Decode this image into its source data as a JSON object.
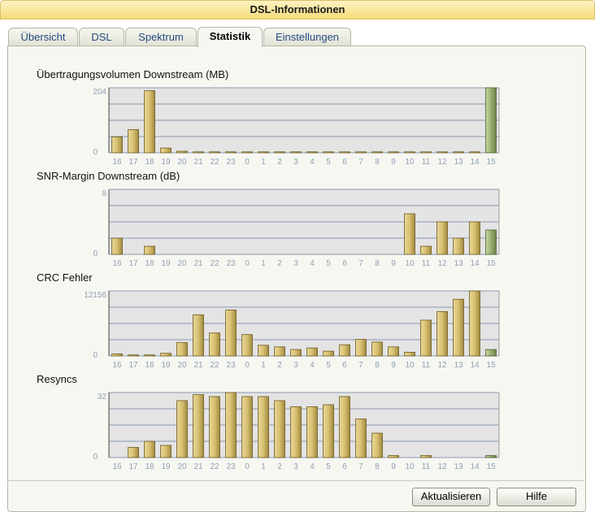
{
  "window": {
    "title": "DSL-Informationen"
  },
  "tabs": [
    {
      "label": "Übersicht",
      "active": false
    },
    {
      "label": "DSL",
      "active": false
    },
    {
      "label": "Spektrum",
      "active": false
    },
    {
      "label": "Statistik",
      "active": true
    },
    {
      "label": "Einstellungen",
      "active": false
    }
  ],
  "buttons": {
    "refresh": "Aktualisieren",
    "help": "Hilfe"
  },
  "colors": {
    "bar": "#d8c070",
    "bar_current": "#9ab070",
    "grid": "#6a7f9c",
    "plot_bg": "#e4e4e4"
  },
  "chart_data": [
    {
      "type": "bar",
      "title": "Übertragungsvolumen Downstream (MB)",
      "categories": [
        "16",
        "17",
        "18",
        "19",
        "20",
        "21",
        "22",
        "23",
        "0",
        "1",
        "2",
        "3",
        "4",
        "5",
        "6",
        "7",
        "8",
        "9",
        "10",
        "11",
        "12",
        "13",
        "14",
        "15"
      ],
      "values": [
        50,
        73,
        195,
        15,
        5,
        3,
        3,
        3,
        3,
        3,
        3,
        3,
        3,
        3,
        3,
        3,
        3,
        3,
        3,
        3,
        3,
        3,
        3,
        204
      ],
      "ylim": [
        0,
        204
      ],
      "ytick_labels": [
        "0",
        "204"
      ],
      "highlight_last": true
    },
    {
      "type": "bar",
      "title": "SNR-Margin Downstream (dB)",
      "categories": [
        "16",
        "17",
        "18",
        "19",
        "20",
        "21",
        "22",
        "23",
        "0",
        "1",
        "2",
        "3",
        "4",
        "5",
        "6",
        "7",
        "8",
        "9",
        "10",
        "11",
        "12",
        "13",
        "14",
        "15"
      ],
      "values": [
        2,
        0,
        1,
        0,
        0,
        0,
        0,
        0,
        0,
        0,
        0,
        0,
        0,
        0,
        0,
        0,
        0,
        0,
        5,
        1,
        4,
        2,
        4,
        3
      ],
      "ylim": [
        0,
        8
      ],
      "ytick_labels": [
        "0",
        "8"
      ],
      "highlight_last": true
    },
    {
      "type": "bar",
      "title": "CRC Fehler",
      "categories": [
        "16",
        "17",
        "18",
        "19",
        "20",
        "21",
        "22",
        "23",
        "0",
        "1",
        "2",
        "3",
        "4",
        "5",
        "6",
        "7",
        "8",
        "9",
        "10",
        "11",
        "12",
        "13",
        "14",
        "15"
      ],
      "values": [
        400,
        200,
        200,
        500,
        2500,
        7700,
        4300,
        8600,
        4000,
        2000,
        1700,
        1200,
        1500,
        900,
        2100,
        3100,
        2600,
        1700,
        700,
        6700,
        8300,
        10600,
        12156,
        1200
      ],
      "ylim": [
        0,
        12156
      ],
      "ytick_labels": [
        "0",
        "12156"
      ],
      "highlight_last": true
    },
    {
      "type": "bar",
      "title": "Resyncs",
      "categories": [
        "16",
        "17",
        "18",
        "19",
        "20",
        "21",
        "22",
        "23",
        "0",
        "1",
        "2",
        "3",
        "4",
        "5",
        "6",
        "7",
        "8",
        "9",
        "10",
        "11",
        "12",
        "13",
        "14",
        "15"
      ],
      "values": [
        0,
        5,
        8,
        6,
        28,
        31,
        30,
        32,
        30,
        30,
        28,
        25,
        25,
        26,
        30,
        19,
        12,
        1,
        0,
        1,
        0,
        0,
        0,
        1
      ],
      "ylim": [
        0,
        32
      ],
      "ytick_labels": [
        "0",
        "32"
      ],
      "highlight_last": true
    }
  ]
}
